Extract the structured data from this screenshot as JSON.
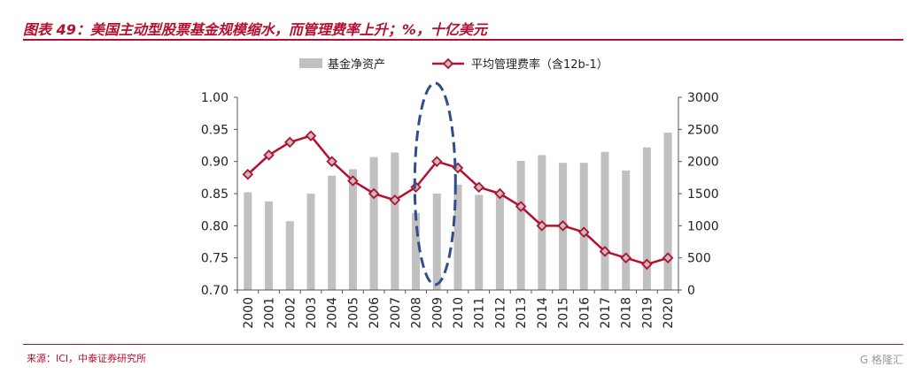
{
  "title": "图表 49：美国主动型股票基金规模缩水，而管理费率上升；%，十亿美元",
  "source": "来源：ICI，中泰证券研究所",
  "watermark": "G 格隆汇",
  "colors": {
    "bar": "#c0c0c0",
    "line": "#b5102f",
    "marker_face": "#c0c0c0",
    "highlight": "#2f4f8a",
    "brand": "#b5102f"
  },
  "chart_data": {
    "type": "bar",
    "categories": [
      "2000",
      "2001",
      "2002",
      "2003",
      "2004",
      "2005",
      "2006",
      "2007",
      "2008",
      "2009",
      "2010",
      "2011",
      "2012",
      "2013",
      "2014",
      "2015",
      "2016",
      "2017",
      "2018",
      "2019",
      "2020"
    ],
    "series": [
      {
        "name": "基金净资产",
        "type": "bar",
        "axis": "right",
        "values": [
          1520,
          1380,
          1070,
          1500,
          1780,
          1880,
          2070,
          2140,
          1200,
          1500,
          1640,
          1480,
          1500,
          2010,
          2100,
          1980,
          1980,
          2150,
          1860,
          2220,
          2450
        ]
      },
      {
        "name": "平均管理费率（含12b-1）",
        "type": "line",
        "axis": "left",
        "values": [
          0.88,
          0.91,
          0.93,
          0.94,
          0.9,
          0.87,
          0.85,
          0.84,
          0.86,
          0.9,
          0.89,
          0.86,
          0.85,
          0.83,
          0.8,
          0.8,
          0.79,
          0.76,
          0.75,
          0.74,
          0.75
        ]
      }
    ],
    "y_left": {
      "ylim": [
        0.7,
        1.0
      ],
      "ticks": [
        "0.70",
        "0.75",
        "0.80",
        "0.85",
        "0.90",
        "0.95",
        "1.00"
      ]
    },
    "y_right": {
      "ylim": [
        0,
        3000
      ],
      "ticks": [
        "0",
        "500",
        "1000",
        "1500",
        "2000",
        "2500",
        "3000"
      ]
    },
    "legend": "top-center",
    "grid": false,
    "highlight_category": "2009"
  }
}
